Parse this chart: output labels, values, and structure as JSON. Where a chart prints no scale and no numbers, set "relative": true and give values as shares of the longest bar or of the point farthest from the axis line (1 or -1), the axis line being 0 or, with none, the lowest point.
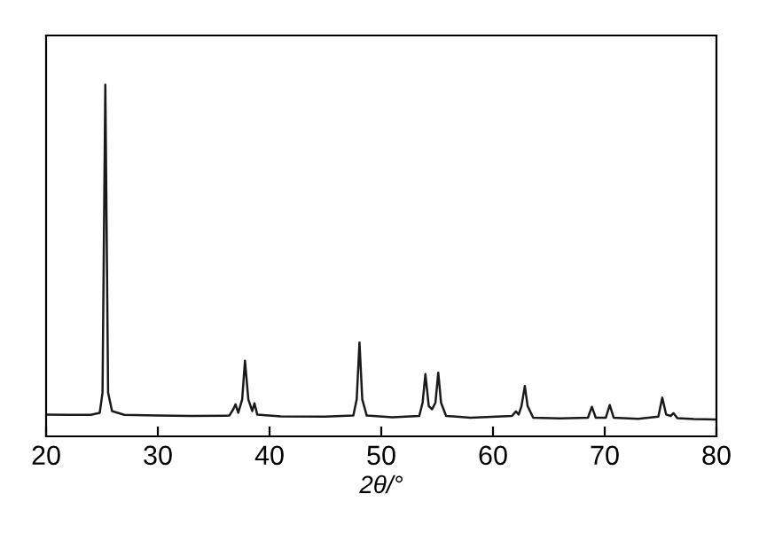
{
  "chart_data": {
    "type": "line",
    "xlabel": "2θ/°",
    "relative": true,
    "xlim": [
      20,
      80
    ],
    "xticks": [
      20,
      30,
      40,
      50,
      60,
      70,
      80
    ],
    "grid": false,
    "legend": false,
    "marker": "none",
    "line_style": "solid",
    "series": [
      {
        "color": "#1a1a1a",
        "x": [
          20,
          22,
          24,
          24.8,
          25.05,
          25.3,
          25.55,
          25.9,
          27,
          30,
          33,
          36.4,
          36.75,
          36.95,
          37.2,
          37.55,
          37.8,
          38.1,
          38.45,
          38.65,
          38.9,
          41,
          45,
          47.5,
          47.8,
          48.05,
          48.3,
          48.7,
          51,
          53.4,
          53.7,
          53.95,
          54.25,
          54.55,
          54.85,
          55.1,
          55.35,
          55.8,
          58,
          61.7,
          62.05,
          62.3,
          62.55,
          62.85,
          63.1,
          63.6,
          66,
          68.5,
          68.85,
          69.2,
          70.1,
          70.45,
          70.8,
          73,
          74.8,
          75.15,
          75.5,
          75.9,
          76.15,
          76.5,
          78,
          80
        ],
        "values": [
          0.062,
          0.061,
          0.061,
          0.067,
          0.124,
          1.0,
          0.124,
          0.072,
          0.061,
          0.059,
          0.058,
          0.059,
          0.077,
          0.091,
          0.067,
          0.105,
          0.215,
          0.105,
          0.072,
          0.094,
          0.062,
          0.057,
          0.056,
          0.059,
          0.105,
          0.267,
          0.105,
          0.059,
          0.054,
          0.058,
          0.096,
          0.177,
          0.086,
          0.077,
          0.096,
          0.181,
          0.096,
          0.058,
          0.053,
          0.058,
          0.071,
          0.062,
          0.086,
          0.143,
          0.086,
          0.053,
          0.051,
          0.053,
          0.084,
          0.053,
          0.053,
          0.089,
          0.053,
          0.05,
          0.056,
          0.11,
          0.062,
          0.058,
          0.066,
          0.052,
          0.049,
          0.048
        ]
      }
    ]
  }
}
